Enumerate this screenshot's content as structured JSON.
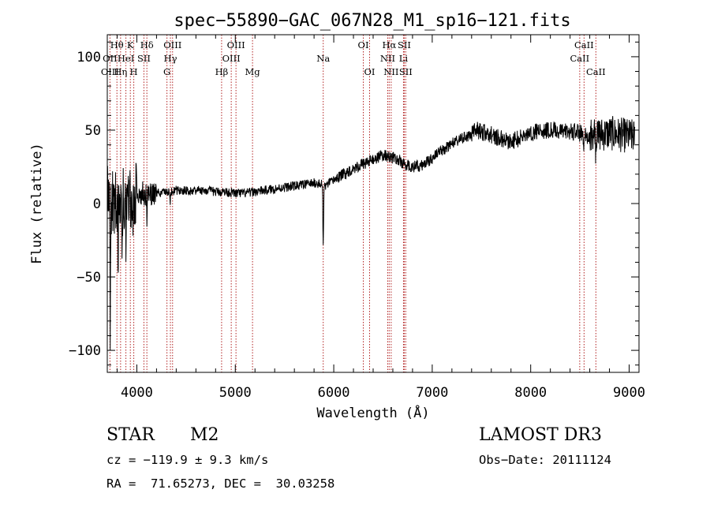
{
  "chart_data": {
    "type": "line",
    "title": "spec−55890−GAC_067N28_M1_sp16−121.fits",
    "xlabel": "Wavelength (Å)",
    "ylabel": "Flux (relative)",
    "xlim": [
      3700,
      9100
    ],
    "ylim": [
      -115,
      115
    ],
    "xticks": [
      4000,
      5000,
      6000,
      7000,
      8000,
      9000
    ],
    "yticks": [
      -100,
      -50,
      0,
      50,
      100
    ],
    "ytick_labels": [
      "−100",
      "−50",
      "0",
      "50",
      "100"
    ],
    "anchors": [
      [
        3700,
        5
      ],
      [
        3750,
        0
      ],
      [
        3800,
        2
      ],
      [
        3850,
        3
      ],
      [
        3900,
        4
      ],
      [
        3950,
        5
      ],
      [
        4000,
        6
      ],
      [
        4100,
        7
      ],
      [
        4200,
        7
      ],
      [
        4300,
        8
      ],
      [
        4400,
        9
      ],
      [
        4500,
        9
      ],
      [
        4600,
        9
      ],
      [
        4700,
        9
      ],
      [
        4800,
        8
      ],
      [
        4900,
        8
      ],
      [
        5000,
        7
      ],
      [
        5100,
        7
      ],
      [
        5200,
        8
      ],
      [
        5300,
        9
      ],
      [
        5400,
        10
      ],
      [
        5500,
        11
      ],
      [
        5600,
        12
      ],
      [
        5700,
        13
      ],
      [
        5800,
        14
      ],
      [
        5880,
        13
      ],
      [
        5920,
        12
      ],
      [
        6000,
        16
      ],
      [
        6100,
        20
      ],
      [
        6200,
        24
      ],
      [
        6300,
        27
      ],
      [
        6400,
        30
      ],
      [
        6500,
        33
      ],
      [
        6560,
        32
      ],
      [
        6650,
        30
      ],
      [
        6700,
        27
      ],
      [
        6800,
        25
      ],
      [
        6900,
        26
      ],
      [
        7000,
        31
      ],
      [
        7100,
        36
      ],
      [
        7200,
        41
      ],
      [
        7300,
        44
      ],
      [
        7400,
        47
      ],
      [
        7450,
        50
      ],
      [
        7500,
        49
      ],
      [
        7600,
        47
      ],
      [
        7700,
        44
      ],
      [
        7800,
        42
      ],
      [
        7900,
        45
      ],
      [
        8000,
        48
      ],
      [
        8100,
        50
      ],
      [
        8200,
        50
      ],
      [
        8300,
        49
      ],
      [
        8400,
        49
      ],
      [
        8500,
        48
      ],
      [
        8600,
        46
      ],
      [
        8700,
        47
      ],
      [
        8800,
        48
      ],
      [
        8900,
        47
      ],
      [
        9000,
        46
      ],
      [
        9100,
        45
      ]
    ],
    "features": [
      {
        "wavelength": 5893,
        "depth": 42,
        "width": 5
      },
      {
        "wavelength": 3730,
        "depth": 80,
        "width": 4
      },
      {
        "wavelength": 3810,
        "depth": 45,
        "width": 4
      },
      {
        "wavelength": 3850,
        "depth": 50,
        "width": 4
      },
      {
        "wavelength": 3890,
        "depth": 38,
        "width": 4
      },
      {
        "wavelength": 3960,
        "depth": 30,
        "width": 4
      },
      {
        "wavelength": 4102,
        "depth": 15,
        "width": 5
      },
      {
        "wavelength": 4340,
        "depth": 8,
        "width": 5
      },
      {
        "wavelength": 8542,
        "depth": 8,
        "width": 6
      },
      {
        "wavelength": 8662,
        "depth": 10,
        "width": 6
      }
    ],
    "noise": [
      {
        "from": 3700,
        "to": 4000,
        "amp": 22
      },
      {
        "from": 4000,
        "to": 4200,
        "amp": 9
      },
      {
        "from": 4200,
        "to": 6000,
        "amp": 3.2
      },
      {
        "from": 6000,
        "to": 7400,
        "amp": 4
      },
      {
        "from": 7400,
        "to": 8600,
        "amp": 6
      },
      {
        "from": 8600,
        "to": 9100,
        "amp": 12
      }
    ],
    "spectral_lines": [
      {
        "label": "Hθ",
        "wavelength": 3798,
        "row": 0
      },
      {
        "label": "K",
        "wavelength": 3934,
        "row": 0
      },
      {
        "label": "Hδ",
        "wavelength": 4102,
        "row": 0
      },
      {
        "label": "OIII",
        "wavelength": 4363,
        "row": 0
      },
      {
        "label": "OIII",
        "wavelength": 5007,
        "row": 0
      },
      {
        "label": "OI",
        "wavelength": 6300,
        "row": 0
      },
      {
        "label": "Hα",
        "wavelength": 6563,
        "row": 0
      },
      {
        "label": "SII",
        "wavelength": 6716,
        "row": 0
      },
      {
        "label": "CaII",
        "wavelength": 8542,
        "row": 0
      },
      {
        "label": "OII",
        "wavelength": 3727,
        "row": 1
      },
      {
        "label": "HeI",
        "wavelength": 3889,
        "row": 1
      },
      {
        "label": "SII",
        "wavelength": 4072,
        "row": 1
      },
      {
        "label": "Hγ",
        "wavelength": 4341,
        "row": 1
      },
      {
        "label": "OIII",
        "wavelength": 4959,
        "row": 1
      },
      {
        "label": "Na",
        "wavelength": 5893,
        "row": 1
      },
      {
        "label": "NII",
        "wavelength": 6548,
        "row": 1
      },
      {
        "label": "Li",
        "wavelength": 6708,
        "row": 1
      },
      {
        "label": "CaII",
        "wavelength": 8498,
        "row": 1
      },
      {
        "label": "OIII",
        "wavelength": 3727,
        "row": 2
      },
      {
        "label": "Hη",
        "wavelength": 3835,
        "row": 2
      },
      {
        "label": "H",
        "wavelength": 3969,
        "row": 2
      },
      {
        "label": "G",
        "wavelength": 4306,
        "row": 2
      },
      {
        "label": "Hβ",
        "wavelength": 4861,
        "row": 2
      },
      {
        "label": "Mg",
        "wavelength": 5175,
        "row": 2
      },
      {
        "label": "OI",
        "wavelength": 6364,
        "row": 2
      },
      {
        "label": "NII",
        "wavelength": 6583,
        "row": 2
      },
      {
        "label": "SII",
        "wavelength": 6731,
        "row": 2
      },
      {
        "label": "CaII",
        "wavelength": 8662,
        "row": 2
      }
    ]
  },
  "info": {
    "object_type": "STAR",
    "subclass": "M2",
    "survey": "LAMOST DR3",
    "cz": "cz = −119.9 ± 9.3 km/s",
    "obs_date": "Obs−Date: 20111124",
    "coords": "RA =  71.65273, DEC =  30.03258"
  },
  "colors": {
    "line_marker": "#b22222",
    "spectrum": "#000000"
  }
}
